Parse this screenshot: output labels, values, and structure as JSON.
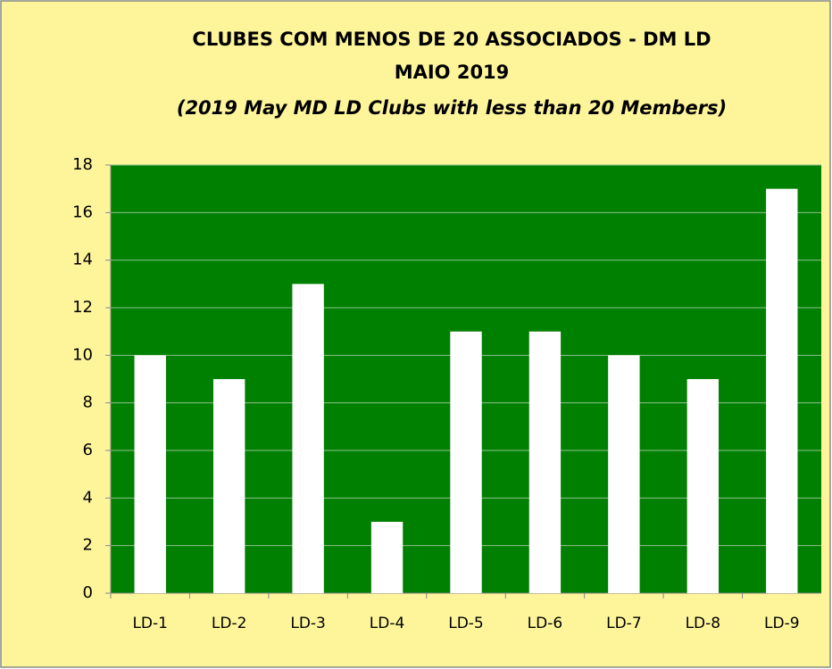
{
  "chart_data": {
    "type": "bar",
    "title": [
      "CLUBES COM MENOS DE 20 ASSOCIADOS - DM LD",
      "MAIO 2019"
    ],
    "subtitle": "(2019 May  MD LD  Clubs with less than 20 Members)",
    "categories": [
      "LD-1",
      "LD-2",
      "LD-3",
      "LD-4",
      "LD-5",
      "LD-6",
      "LD-7",
      "LD-8",
      "LD-9"
    ],
    "values": [
      10,
      9,
      13,
      3,
      11,
      11,
      10,
      9,
      17
    ],
    "color": "#ffffff",
    "plot_background": "#008000",
    "background": "#fef59b",
    "ylim": [
      0,
      18
    ],
    "yticks": [
      0,
      2,
      4,
      6,
      8,
      10,
      12,
      14,
      16,
      18
    ],
    "grid": true
  }
}
